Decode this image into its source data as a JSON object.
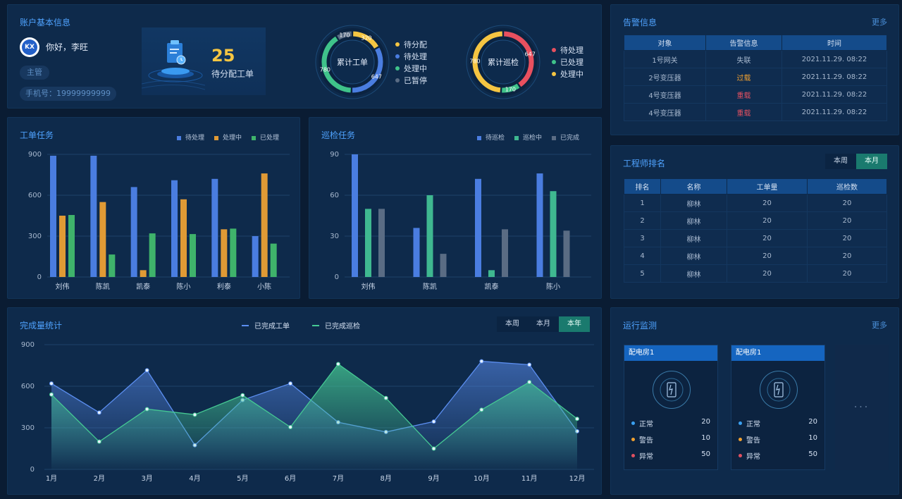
{
  "account": {
    "title": "账户基本信息",
    "avatar_text": "KX",
    "greeting": "你好，李旺",
    "role": "主管",
    "phone": "手机号：19999999999",
    "pending_count": "25",
    "pending_label": "待分配工单"
  },
  "donut_orders": {
    "center_label": "累计工单",
    "segments": [
      {
        "name": "待分配",
        "value": 320,
        "label": "320",
        "color": "#f5c542"
      },
      {
        "name": "待处理",
        "value": 647,
        "label": "647",
        "color": "#4a7de0"
      },
      {
        "name": "处理中",
        "value": 780,
        "label": "780",
        "color": "#3fc38a"
      },
      {
        "name": "已暂停",
        "value": 170,
        "label": "170",
        "color": "#5a6c84"
      }
    ]
  },
  "donut_patrol": {
    "center_label": "累计巡检",
    "segments": [
      {
        "name": "待处理",
        "value": 647,
        "label": "647",
        "color": "#e8505f"
      },
      {
        "name": "已处理",
        "value": 170,
        "label": "170",
        "color": "#3fc38a"
      },
      {
        "name": "处理中",
        "value": 780,
        "label": "780",
        "color": "#f5c542"
      }
    ]
  },
  "alarm": {
    "title": "告警信息",
    "more": "更多",
    "headers": [
      "对象",
      "告警信息",
      "时间"
    ],
    "rows": [
      {
        "object": "1号网关",
        "info": "失联",
        "level": "normal",
        "time": "2021.11.29.   08:22"
      },
      {
        "object": "2号变压器",
        "info": "过载",
        "level": "orange",
        "time": "2021.11.29.   08:22"
      },
      {
        "object": "4号变压器",
        "info": "重载",
        "level": "red",
        "time": "2021.11.29.   08:22"
      },
      {
        "object": "4号变压器",
        "info": "重载",
        "level": "red",
        "time": "2021.11.29.   08:22"
      }
    ]
  },
  "work_chart": {
    "title": "工单任务",
    "chart_data": {
      "type": "bar",
      "categories": [
        "刘伟",
        "陈凯",
        "凯泰",
        "陈小",
        "利泰",
        "小陈"
      ],
      "series": [
        {
          "name": "待处理",
          "color": "#4a7de0",
          "values": [
            890,
            890,
            660,
            710,
            720,
            300
          ]
        },
        {
          "name": "处理中",
          "color": "#e09a35",
          "values": [
            450,
            550,
            50,
            570,
            350,
            760
          ]
        },
        {
          "name": "已处理",
          "color": "#3fb36b",
          "values": [
            455,
            165,
            320,
            315,
            355,
            245
          ]
        }
      ],
      "ylim": [
        0,
        900
      ],
      "yticks": [
        0,
        300,
        600,
        900
      ]
    }
  },
  "patrol_chart": {
    "title": "巡检任务",
    "chart_data": {
      "type": "bar",
      "categories": [
        "刘伟",
        "陈凯",
        "凯泰",
        "陈小"
      ],
      "series": [
        {
          "name": "待巡检",
          "color": "#4a7de0",
          "values": [
            90,
            36,
            72,
            76
          ]
        },
        {
          "name": "巡检中",
          "color": "#3fb890",
          "values": [
            50,
            60,
            5,
            63
          ]
        },
        {
          "name": "已完成",
          "color": "#5a6c84",
          "values": [
            50,
            17,
            35,
            34
          ]
        }
      ],
      "ylim": [
        0,
        90
      ],
      "yticks": [
        0,
        30,
        60,
        90
      ]
    }
  },
  "complete_chart": {
    "title": "完成量统计",
    "tabs": [
      "本周",
      "本月",
      "本年"
    ],
    "active_tab": 2,
    "chart_data": {
      "type": "area",
      "categories": [
        "1月",
        "2月",
        "3月",
        "4月",
        "5月",
        "6月",
        "7月",
        "8月",
        "9月",
        "10月",
        "11月",
        "12月"
      ],
      "series": [
        {
          "name": "已完成工单",
          "color": "#5b8ef0",
          "values": [
            620,
            410,
            715,
            175,
            500,
            620,
            340,
            270,
            345,
            780,
            755,
            275
          ]
        },
        {
          "name": "已完成巡检",
          "color": "#45c893",
          "values": [
            540,
            200,
            435,
            395,
            535,
            305,
            760,
            515,
            150,
            430,
            630,
            365
          ]
        }
      ],
      "ylim": [
        0,
        900
      ],
      "yticks": [
        0,
        300,
        600,
        900
      ]
    }
  },
  "engineer": {
    "title": "工程师排名",
    "tabs": [
      "本周",
      "本月"
    ],
    "active_tab": 1,
    "headers": [
      "排名",
      "名称",
      "工单量",
      "巡检数"
    ],
    "rows": [
      {
        "rank": "1",
        "name": "柳林",
        "orders": "20",
        "patrols": "20"
      },
      {
        "rank": "2",
        "name": "柳林",
        "orders": "20",
        "patrols": "20"
      },
      {
        "rank": "3",
        "name": "柳林",
        "orders": "20",
        "patrols": "20"
      },
      {
        "rank": "4",
        "name": "柳林",
        "orders": "20",
        "patrols": "20"
      },
      {
        "rank": "5",
        "name": "柳林",
        "orders": "20",
        "patrols": "20"
      }
    ]
  },
  "monitor": {
    "title": "运行监测",
    "more": "更多",
    "cards": [
      {
        "name": "配电房1",
        "normal_label": "正常",
        "normal": "20",
        "warn_label": "警告",
        "warn": "10",
        "error_label": "异常",
        "error": "50"
      },
      {
        "name": "配电房1",
        "normal_label": "正常",
        "normal": "20",
        "warn_label": "警告",
        "warn": "10",
        "error_label": "异常",
        "error": "50"
      }
    ],
    "placeholder": "···"
  }
}
